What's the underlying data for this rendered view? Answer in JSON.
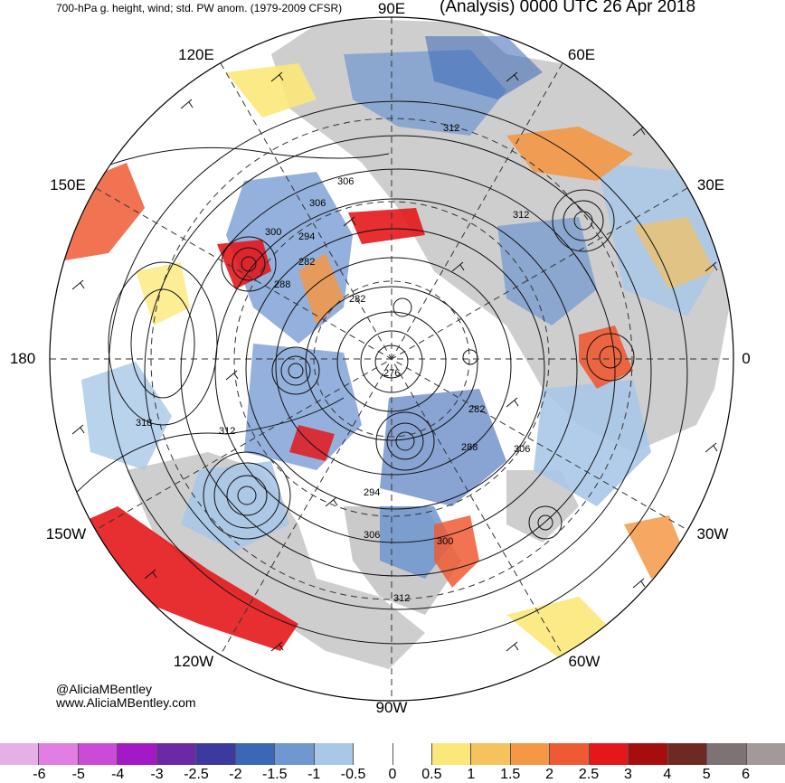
{
  "header": {
    "product": "700-hPa g. height, wind; std. PW anom. (1979-2009 CFSR)",
    "valid": "(Analysis) 0000 UTC 26 Apr 2018"
  },
  "longitudes": {
    "e90": "90E",
    "e120": "120E",
    "e60": "60E",
    "e150": "150E",
    "e30": "30E",
    "w180": "180",
    "zero": "0",
    "w150": "150W",
    "w30": "30W",
    "w120": "120W",
    "w60": "60W",
    "w90": "90W"
  },
  "height_labels": [
    "312",
    "312",
    "312",
    "306",
    "306",
    "306",
    "306",
    "300",
    "300",
    "294",
    "294",
    "288",
    "288",
    "282",
    "282",
    "282",
    "276",
    "318",
    "312"
  ],
  "credit": {
    "handle": "@AliciaMBentley",
    "site": "www.AliciaMBentley.com"
  },
  "colorbar": {
    "ticks": [
      "-6",
      "-5",
      "-4",
      "-3",
      "-2.5",
      "-2",
      "-1.5",
      "-1",
      "-0.5",
      "0",
      "0.5",
      "1",
      "1.5",
      "2",
      "2.5",
      "3",
      "4",
      "5",
      "6"
    ],
    "colors": [
      "#e4b0e6",
      "#e07ee4",
      "#cc4ad8",
      "#a419c6",
      "#6a2aa8",
      "#3c3a9e",
      "#3a67b6",
      "#6f97d0",
      "#a9c8e8",
      "#ffffff",
      "#ffffff",
      "#fce87a",
      "#f6c25d",
      "#f49846",
      "#ef5a34",
      "#e4171b",
      "#a60e0e",
      "#6e2a22",
      "#7f7274",
      "#a59898"
    ]
  },
  "colors": {
    "land": "#bdbdbd",
    "contour": "#111111",
    "pw_positive": "#f49846",
    "pw_negative": "#6f97d0"
  }
}
